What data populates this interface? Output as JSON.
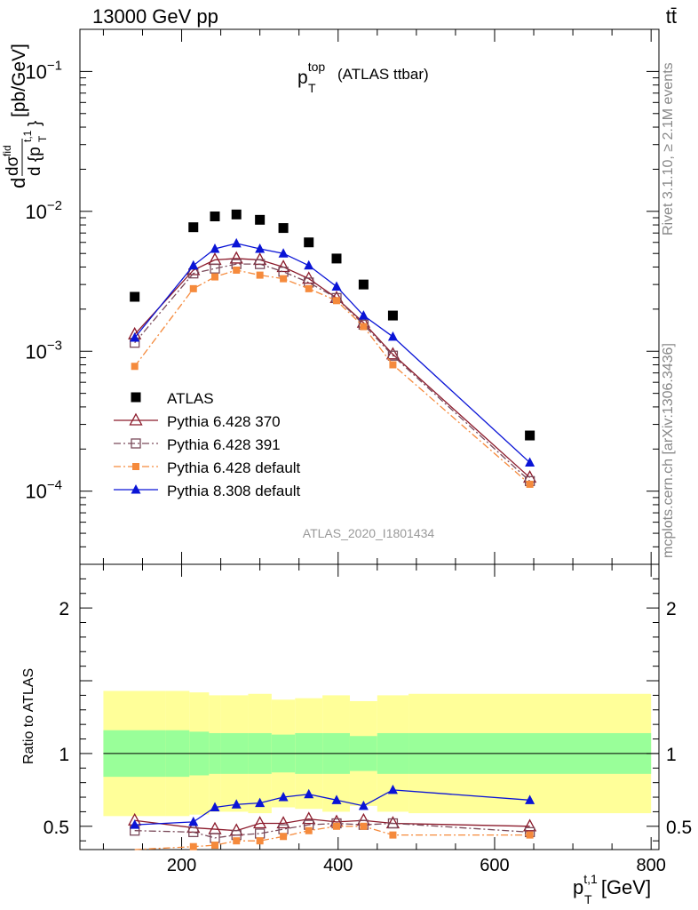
{
  "header": {
    "energy_label": "13000 GeV pp",
    "process_label": "tt̄"
  },
  "side_labels": {
    "rivet": "Rivet 3.1.10, ≥ 2.1M events",
    "mcplots": "mcplots.cern.ch [arXiv:1306.3436]"
  },
  "chart_data": [
    {
      "type": "scatter",
      "panel": "main",
      "title_main": "p",
      "title_sup": "top",
      "title_sub": "T",
      "title_suffix": "(ATLAS ttbar)",
      "ylabel": "d dσ^fid / d {p_T^{t,1}} [pb/GeV]",
      "ylabel_unit": "[pb/GeV]",
      "yscale": "log",
      "ylim": [
        3e-05,
        0.2
      ],
      "xlim": [
        70,
        810
      ],
      "y_tick_labels": [
        "10^-4",
        "10^-3",
        "10^-2",
        "10^-1"
      ],
      "analysis_label": "ATLAS_2020_I1801434",
      "legend_position": "lower-left",
      "x": [
        140,
        215,
        242.5,
        270,
        300,
        330,
        362.5,
        398,
        432.5,
        470,
        645
      ],
      "series": [
        {
          "name": "ATLAS",
          "color": "#000000",
          "marker": "square-filled",
          "values": [
            0.00245,
            0.0077,
            0.0092,
            0.0095,
            0.0087,
            0.0076,
            0.006,
            0.0046,
            0.003,
            0.0018,
            0.00025
          ]
        },
        {
          "name": "Pythia 6.428 370",
          "color": "#8b1a2b",
          "marker": "triangle-open",
          "line": "solid",
          "values": [
            0.00132,
            0.0038,
            0.0045,
            0.0046,
            0.0045,
            0.004,
            0.0033,
            0.0024,
            0.0016,
            0.00095,
            0.000125
          ]
        },
        {
          "name": "Pythia 6.428 391",
          "color": "#7a4a5a",
          "marker": "square-open",
          "line": "dashdot",
          "values": [
            0.00115,
            0.0036,
            0.0039,
            0.0042,
            0.0042,
            0.0037,
            0.0031,
            0.0024,
            0.00155,
            0.00093,
            0.000118
          ]
        },
        {
          "name": "Pythia 6.428 default",
          "color": "#f58a3c",
          "marker": "square-filled-small",
          "line": "dashdot",
          "values": [
            0.00078,
            0.0028,
            0.0034,
            0.0038,
            0.0035,
            0.0033,
            0.0028,
            0.0023,
            0.0015,
            0.0008,
            0.000112
          ]
        },
        {
          "name": "Pythia 8.308 default",
          "color": "#0a14d6",
          "marker": "triangle-filled",
          "line": "solid",
          "values": [
            0.00125,
            0.0041,
            0.0054,
            0.0059,
            0.0054,
            0.005,
            0.0041,
            0.0029,
            0.0018,
            0.00127,
            0.00016
          ]
        }
      ]
    },
    {
      "type": "scatter",
      "panel": "ratio",
      "ylabel": "Ratio to ATLAS",
      "xlabel": "p_T^{t,1} [GeV]",
      "xlabel_main": "p",
      "xlabel_sup": "t,1",
      "xlabel_sub": "T",
      "xlabel_unit": "[GeV]",
      "ylim": [
        0.34,
        2.3
      ],
      "xlim": [
        70,
        810
      ],
      "x_ticks": [
        200,
        400,
        600,
        800
      ],
      "y_ticks": [
        0.5,
        1,
        2
      ],
      "band_edges": [
        100,
        180,
        210,
        235,
        250,
        285,
        315,
        345,
        380,
        415,
        450,
        490,
        800
      ],
      "band_inner": [
        0.16,
        0.16,
        0.15,
        0.14,
        0.14,
        0.14,
        0.13,
        0.14,
        0.14,
        0.12,
        0.14,
        0.14
      ],
      "band_outer": [
        0.43,
        0.43,
        0.42,
        0.4,
        0.4,
        0.41,
        0.37,
        0.38,
        0.4,
        0.36,
        0.4,
        0.41
      ],
      "inner_color": "#99ff99",
      "outer_color": "#ffff99",
      "x": [
        140,
        215,
        242.5,
        270,
        300,
        330,
        362.5,
        398,
        432.5,
        470,
        645
      ],
      "series": [
        {
          "name": "Pythia 6.428 370",
          "color": "#8b1a2b",
          "marker": "triangle-open",
          "line": "solid",
          "values": [
            0.54,
            0.49,
            0.48,
            0.47,
            0.52,
            0.52,
            0.55,
            0.53,
            0.54,
            0.52,
            0.5
          ]
        },
        {
          "name": "Pythia 6.428 391",
          "color": "#7a4a5a",
          "marker": "square-open",
          "line": "dashdot",
          "values": [
            0.47,
            0.46,
            0.42,
            0.44,
            0.45,
            0.48,
            0.51,
            0.52,
            0.51,
            0.52,
            0.46
          ]
        },
        {
          "name": "Pythia 6.428 default",
          "color": "#f58a3c",
          "marker": "square-filled-small",
          "line": "dashdot",
          "values": [
            0.32,
            0.36,
            0.37,
            0.4,
            0.4,
            0.43,
            0.47,
            0.5,
            0.5,
            0.44,
            0.44
          ]
        },
        {
          "name": "Pythia 8.308 default",
          "color": "#0a14d6",
          "marker": "triangle-filled",
          "line": "solid",
          "values": [
            0.51,
            0.53,
            0.63,
            0.65,
            0.66,
            0.7,
            0.72,
            0.68,
            0.64,
            0.75,
            0.68
          ]
        }
      ]
    }
  ]
}
